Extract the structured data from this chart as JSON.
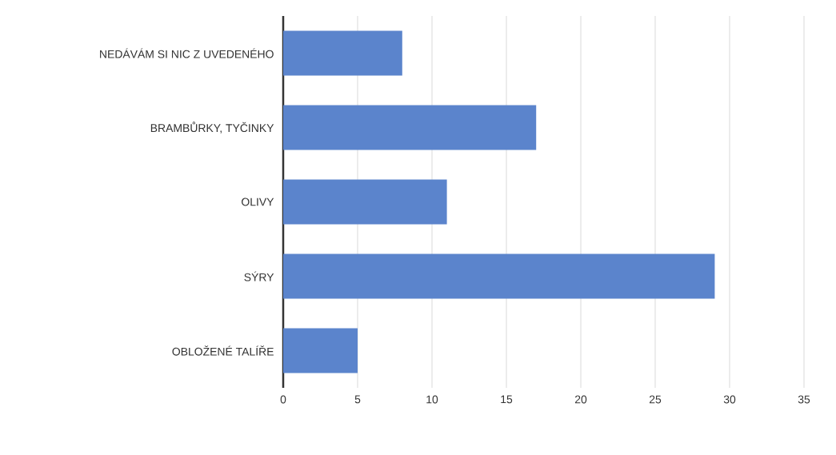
{
  "chart_data": {
    "type": "bar",
    "orientation": "horizontal",
    "categories": [
      "NEDÁVÁM SI NIC Z UVEDENÉHO",
      "BRAMBŮRKY, TYČINKY",
      "OLIVY",
      "SÝRY",
      "OBLOŽENÉ TALÍŘE"
    ],
    "values": [
      8,
      17,
      11,
      29,
      5
    ],
    "color": "#5b84cc",
    "xlim": [
      0,
      35
    ],
    "xticks": [
      0,
      5,
      10,
      15,
      20,
      25,
      30,
      35
    ],
    "grid": "x"
  }
}
